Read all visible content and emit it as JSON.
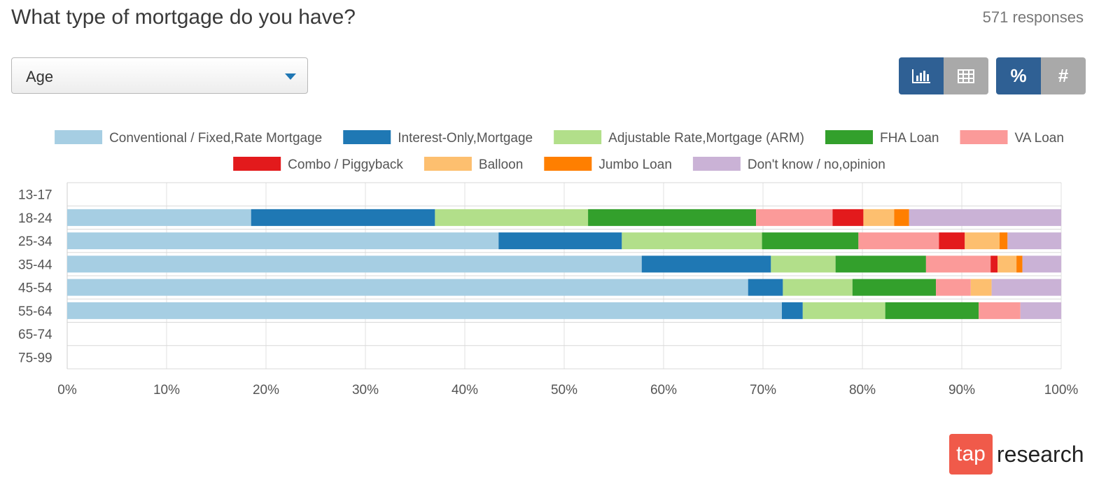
{
  "header": {
    "title": "What type of mortgage do you have?",
    "responses": "571 responses"
  },
  "filter": {
    "selected": "Age"
  },
  "view_toggle": {
    "chart_icon": "bar-chart-icon",
    "table_icon": "table-icon",
    "percent_label": "%",
    "count_label": "#"
  },
  "logo": {
    "box_text": "tap",
    "text": "research"
  },
  "chart_data": {
    "type": "bar",
    "orientation": "horizontal",
    "stacked": true,
    "title": "",
    "xlabel": "",
    "ylabel": "",
    "xlim": [
      0,
      100
    ],
    "x_ticks": [
      "0%",
      "10%",
      "20%",
      "30%",
      "40%",
      "50%",
      "60%",
      "70%",
      "80%",
      "90%",
      "100%"
    ],
    "grid": true,
    "legend_position": "top",
    "categories": [
      "13-17",
      "18-24",
      "25-34",
      "35-44",
      "45-54",
      "55-64",
      "65-74",
      "75-99"
    ],
    "series": [
      {
        "name": "Conventional / Fixed,Rate Mortgage",
        "color": "#a6cee3",
        "values": [
          0,
          18.5,
          43.4,
          57.8,
          68.5,
          71.9,
          0,
          0
        ]
      },
      {
        "name": "Interest-Only,Mortgage",
        "color": "#1f78b4",
        "values": [
          0,
          18.5,
          12.4,
          13.0,
          3.5,
          2.1,
          0,
          0
        ]
      },
      {
        "name": "Adjustable Rate,Mortgage (ARM)",
        "color": "#b2df8a",
        "values": [
          0,
          15.4,
          14.1,
          6.5,
          7.0,
          8.3,
          0,
          0
        ]
      },
      {
        "name": "FHA Loan",
        "color": "#33a02c",
        "values": [
          0,
          16.9,
          9.7,
          9.1,
          8.4,
          9.4,
          0,
          0
        ]
      },
      {
        "name": "VA Loan",
        "color": "#fb9a99",
        "values": [
          0,
          7.7,
          8.1,
          6.5,
          3.5,
          4.2,
          0,
          0
        ]
      },
      {
        "name": "Combo / Piggyback",
        "color": "#e31a1c",
        "values": [
          0,
          3.1,
          2.6,
          0.7,
          0,
          0,
          0,
          0
        ]
      },
      {
        "name": "Balloon",
        "color": "#fdbf6f",
        "values": [
          0,
          3.1,
          3.5,
          1.9,
          2.1,
          0,
          0,
          0
        ]
      },
      {
        "name": "Jumbo Loan",
        "color": "#ff7f00",
        "values": [
          0,
          1.5,
          0.8,
          0.6,
          0,
          0,
          0,
          0
        ]
      },
      {
        "name": "Don't know / no,opinion",
        "color": "#cab2d6",
        "values": [
          0,
          15.3,
          5.4,
          3.9,
          7.0,
          4.1,
          0,
          0
        ]
      }
    ]
  }
}
